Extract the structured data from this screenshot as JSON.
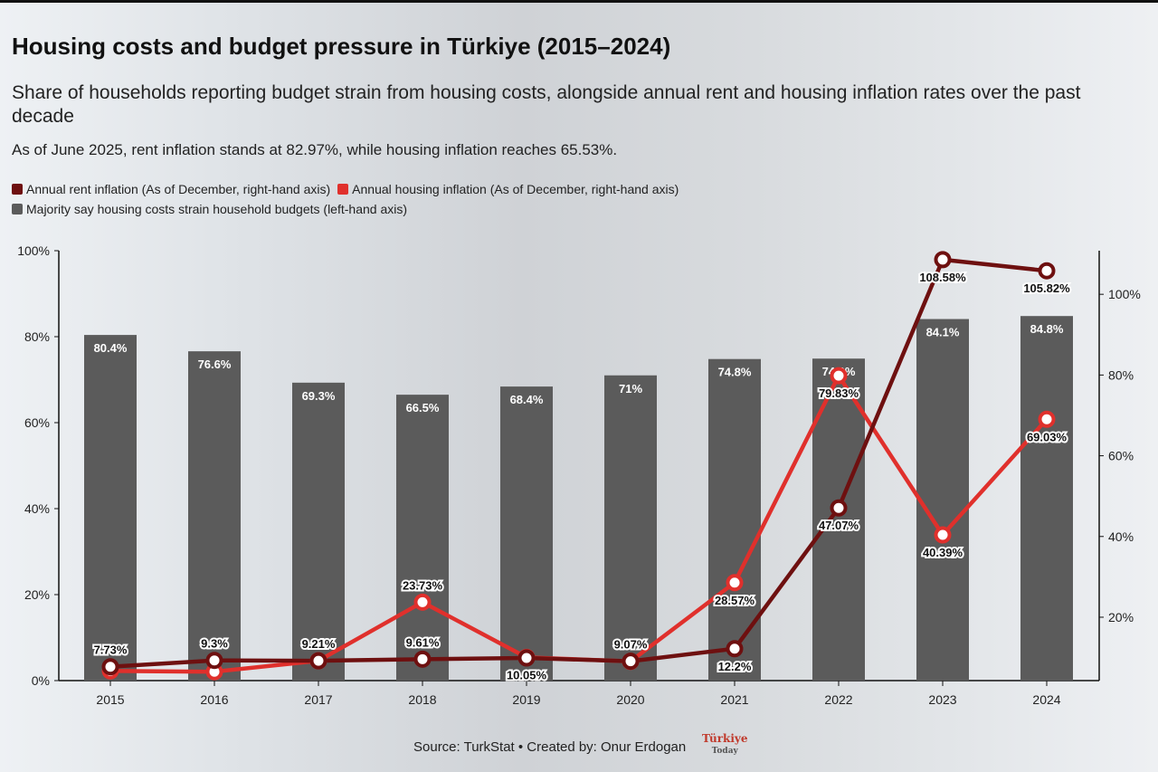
{
  "title": "Housing costs and budget pressure in Türkiye (2015–2024)",
  "subtitle": "Share of households reporting budget strain from housing costs, alongside annual rent and housing inflation rates over the past decade",
  "note": "As of June 2025, rent inflation stands at 82.97%, while housing inflation reaches 65.53%.",
  "source": "Source: TurkStat • Created by: Onur Erdogan",
  "logo_text": "Türkiye Today",
  "chart_data": {
    "type": "bar+line",
    "categories": [
      "2015",
      "2016",
      "2017",
      "2018",
      "2019",
      "2020",
      "2021",
      "2022",
      "2023",
      "2024"
    ],
    "left_axis": {
      "ylim": [
        0,
        100
      ],
      "ticks": [
        "0%",
        "20%",
        "40%",
        "60%",
        "80%",
        "100%"
      ]
    },
    "right_axis": {
      "ylim": [
        4.3,
        110.8
      ],
      "ticks": [
        "20%",
        "40%",
        "60%",
        "80%",
        "100%"
      ]
    },
    "series": [
      {
        "name": "Majority say housing costs strain household budgets (left-hand axis)",
        "type": "bar",
        "axis": "left",
        "color": "#5b5b5b",
        "values": [
          80.4,
          76.6,
          69.3,
          66.5,
          68.4,
          71,
          74.8,
          74.9,
          84.1,
          84.8
        ],
        "labels": [
          "80.4%",
          "76.6%",
          "69.3%",
          "66.5%",
          "68.4%",
          "71%",
          "74.8%",
          "74.9%",
          "84.1%",
          "84.8%"
        ]
      },
      {
        "name": "Annual rent inflation (As of December, right-hand axis)",
        "type": "line",
        "axis": "right",
        "color": "#6e1010",
        "values": [
          7.73,
          9.3,
          9.2,
          9.61,
          9.9,
          9.1,
          12.2,
          47.07,
          108.58,
          105.82
        ],
        "labels": [
          "7.73%",
          "9.3%",
          "",
          "9.61%",
          "",
          "",
          "12.2%",
          "47.07%",
          "108.58%",
          "105.82%"
        ]
      },
      {
        "name": "Annual housing inflation (As of December, right-hand axis)",
        "type": "line",
        "axis": "right",
        "color": "#e0302c",
        "values": [
          6.7,
          6.5,
          9.21,
          23.73,
          10.05,
          9.07,
          28.57,
          79.83,
          40.39,
          69.03
        ],
        "labels": [
          "",
          "",
          "9.21%",
          "23.73%",
          "10.05%",
          "9.07%",
          "28.57%",
          "79.83%",
          "40.39%",
          "69.03%"
        ]
      }
    ],
    "grid": false,
    "legend": "top-left"
  }
}
